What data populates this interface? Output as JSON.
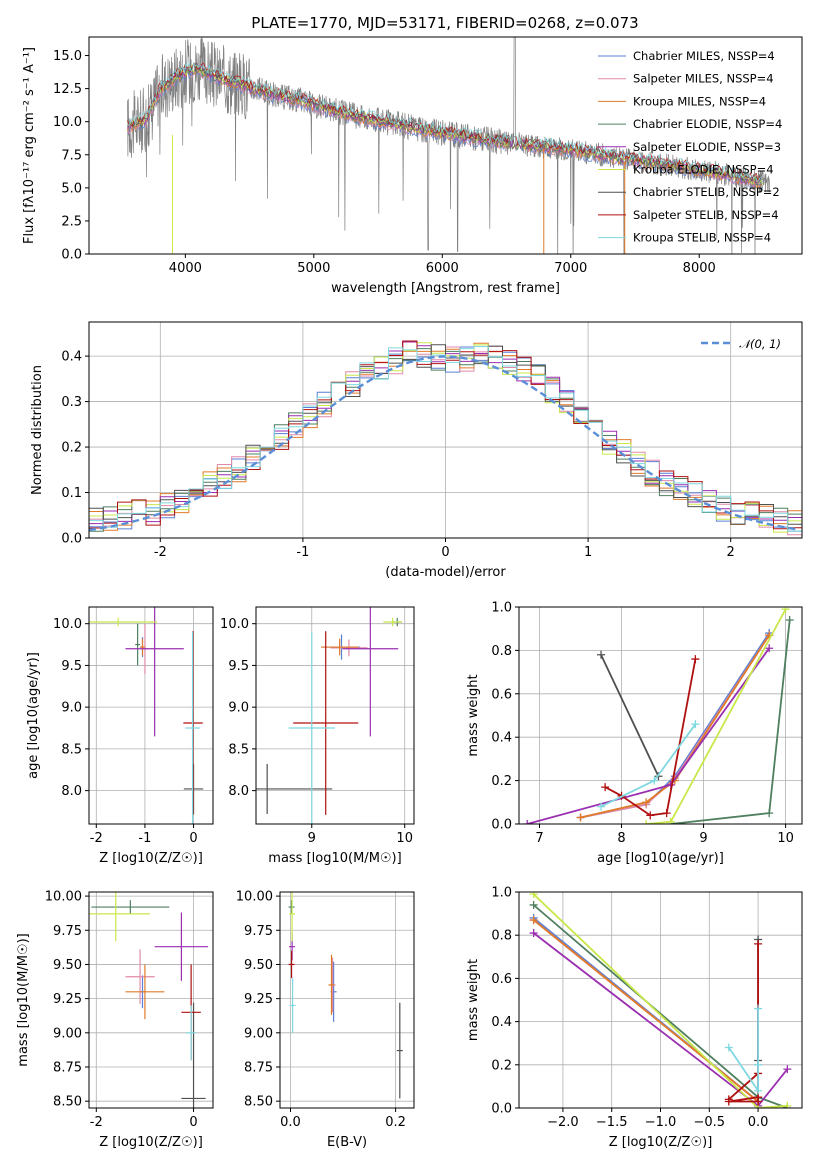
{
  "figure": {
    "title": "PLATE=1770, MJD=53171, FIBERID=0268, z=0.073"
  },
  "colors": {
    "chabrier_miles": "#5a7fd6",
    "salpeter_miles": "#e08aa8",
    "kroupa_miles": "#e07b2a",
    "chabrier_elodie": "#4f7f5f",
    "salpeter_elodie": "#9a2fb0",
    "kroupa_elodie": "#c8e84a",
    "chabrier_stelib": "#505050",
    "salpeter_stelib": "#b01010",
    "kroupa_stelib": "#7fd8e0",
    "data": "#808080",
    "normal": "#5a8fd8"
  },
  "chart_data": [
    {
      "id": "spectrum",
      "type": "line",
      "xlabel": "wavelength [Angstrom, rest frame]",
      "ylabel": "Flux [fλ10⁻¹⁷ erg cm⁻² s⁻¹ A⁻¹]",
      "xlim": [
        3250,
        8800
      ],
      "ylim": [
        0,
        16.4
      ],
      "xticks": [
        4000,
        5000,
        6000,
        7000,
        8000
      ],
      "yticks": [
        "0.0",
        "2.5",
        "5.0",
        "7.5",
        "10.0",
        "12.5",
        "15.0"
      ],
      "grid": false,
      "legend_position": "top-right",
      "legend": [
        "Chabrier MILES, NSSP=4",
        "Salpeter MILES, NSSP=4",
        "Kroupa MILES, NSSP=4",
        "Chabrier ELODIE, NSSP=4",
        "Salpeter ELODIE, NSSP=3",
        "Kroupa ELODIE, NSSP=4",
        "Chabrier STELIB, NSSP=2",
        "Salpeter STELIB, NSSP=4",
        "Kroupa STELIB, NSSP=4"
      ],
      "model_continuum": {
        "x": [
          3550,
          3700,
          3800,
          3900,
          4000,
          4100,
          4300,
          4500,
          4700,
          4900,
          5100,
          5300,
          5500,
          5700,
          5900,
          6100,
          6300,
          6500,
          6700,
          6900,
          7100,
          7300,
          7500,
          7700,
          7900,
          8100,
          8300,
          8500,
          8550
        ],
        "y": [
          9.6,
          10.2,
          12.4,
          13.2,
          13.8,
          14.0,
          13.2,
          12.6,
          12.0,
          11.6,
          11.0,
          10.5,
          10.1,
          9.7,
          9.3,
          9.0,
          8.7,
          8.4,
          8.2,
          8.0,
          7.7,
          7.4,
          7.1,
          6.8,
          6.5,
          6.2,
          5.8,
          5.4,
          5.2
        ]
      },
      "data_range": [
        3550,
        8550
      ]
    },
    {
      "id": "residuals",
      "type": "line",
      "xlabel": "(data-model)/error",
      "ylabel": "Normed distribution",
      "xlim": [
        -2.5,
        2.5
      ],
      "ylim": [
        0,
        0.475
      ],
      "xticks": [
        -2,
        -1,
        0,
        1,
        2
      ],
      "yticks": [
        "0.0",
        "0.1",
        "0.2",
        "0.3",
        "0.4"
      ],
      "grid": true,
      "legend_position": "top-right",
      "legend": [
        "𝒩(0, 1)"
      ],
      "histogram_bin_width": 0.1,
      "histogram_envelope": {
        "x": [
          -2.5,
          -2.0,
          -1.5,
          -1.0,
          -0.5,
          -0.2,
          0.0,
          0.3,
          0.6,
          1.0,
          1.5,
          2.0,
          2.5
        ],
        "y": [
          0.04,
          0.06,
          0.14,
          0.26,
          0.37,
          0.41,
          0.39,
          0.4,
          0.37,
          0.25,
          0.13,
          0.06,
          0.03
        ]
      }
    },
    {
      "id": "age-vs-Z",
      "type": "scatter",
      "xlabel": "Z [log10(Z/Z☉)]",
      "ylabel": "age  [log10(age/yr)]",
      "xlim": [
        -2.15,
        0.4
      ],
      "ylim": [
        7.6,
        10.2
      ],
      "xticks": [
        -2,
        -1,
        0
      ],
      "yticks": [
        "8.0",
        "8.5",
        "9.0",
        "9.5",
        "10.0"
      ],
      "grid": true,
      "points": [
        {
          "model": "chabrier_miles",
          "x": -1.05,
          "xerr": 0.05,
          "y": 9.72,
          "yerr": 0.12
        },
        {
          "model": "salpeter_miles",
          "x": -1.0,
          "xerr": 0.05,
          "y": 9.7,
          "yerr": 0.3
        },
        {
          "model": "kroupa_miles",
          "x": -1.05,
          "xerr": 0.05,
          "y": 9.72,
          "yerr": 0.1
        },
        {
          "model": "chabrier_elodie",
          "x": -1.15,
          "xerr": 0.05,
          "y": 9.75,
          "yerr": 0.25
        },
        {
          "model": "salpeter_elodie",
          "x": -0.8,
          "xerr": 0.6,
          "y": 9.7,
          "yerr": 1.05
        },
        {
          "model": "kroupa_elodie",
          "x": -1.55,
          "xerr": 0.8,
          "y": 10.02,
          "yerr": 0.05
        },
        {
          "model": "chabrier_stelib",
          "x": 0.0,
          "xerr": 0.2,
          "y": 8.02,
          "yerr": 0.3
        },
        {
          "model": "salpeter_stelib",
          "x": -0.01,
          "xerr": 0.2,
          "y": 8.81,
          "yerr": 1.1
        },
        {
          "model": "kroupa_stelib",
          "x": -0.02,
          "xerr": 0.15,
          "y": 8.75,
          "yerr": 1.15
        }
      ]
    },
    {
      "id": "age-vs-mass",
      "type": "scatter",
      "xlabel": "mass [log10(M/M☉)]",
      "ylabel": "",
      "xlim": [
        8.4,
        10.1
      ],
      "ylim": [
        7.6,
        10.2
      ],
      "xticks": [
        9,
        10
      ],
      "yticks": [
        "8.0",
        "8.5",
        "9.0",
        "9.5",
        "10.0"
      ],
      "grid": true,
      "points": [
        {
          "model": "chabrier_miles",
          "x": 9.32,
          "xerr": 0.2,
          "y": 9.72,
          "yerr": 0.15
        },
        {
          "model": "salpeter_miles",
          "x": 9.4,
          "xerr": 0.2,
          "y": 9.71,
          "yerr": 0.1
        },
        {
          "model": "kroupa_miles",
          "x": 9.3,
          "xerr": 0.2,
          "y": 9.72,
          "yerr": 0.1
        },
        {
          "model": "chabrier_elodie",
          "x": 9.92,
          "xerr": 0.05,
          "y": 10.02,
          "yerr": 0.05
        },
        {
          "model": "salpeter_elodie",
          "x": 9.63,
          "xerr": 0.3,
          "y": 9.7,
          "yerr": 1.05
        },
        {
          "model": "kroupa_elodie",
          "x": 9.87,
          "xerr": 0.1,
          "y": 10.02,
          "yerr": 0.05
        },
        {
          "model": "chabrier_stelib",
          "x": 8.52,
          "xerr": 0.7,
          "y": 8.02,
          "yerr": 0.3
        },
        {
          "model": "salpeter_stelib",
          "x": 9.15,
          "xerr": 0.35,
          "y": 8.81,
          "yerr": 1.1
        },
        {
          "model": "kroupa_stelib",
          "x": 9.0,
          "xerr": 0.25,
          "y": 8.75,
          "yerr": 1.15
        }
      ]
    },
    {
      "id": "weight-vs-age",
      "type": "line",
      "xlabel": "age  [log10(age/yr)]",
      "ylabel": "mass weight",
      "xlim": [
        6.75,
        10.2
      ],
      "ylim": [
        0,
        1.0
      ],
      "xticks": [
        7,
        8,
        9,
        10
      ],
      "yticks": [
        "0.0",
        "0.2",
        "0.4",
        "0.6",
        "0.8",
        "1.0"
      ],
      "grid": true,
      "series": [
        {
          "model": "chabrier_miles",
          "x": [
            7.5,
            8.3,
            8.65,
            9.8
          ],
          "y": [
            0.03,
            0.09,
            0.22,
            0.88
          ]
        },
        {
          "model": "salpeter_miles",
          "x": [
            7.5,
            8.3,
            8.65,
            9.8
          ],
          "y": [
            0.03,
            0.09,
            0.21,
            0.87
          ]
        },
        {
          "model": "kroupa_miles",
          "x": [
            7.5,
            8.3,
            8.65,
            9.8
          ],
          "y": [
            0.03,
            0.1,
            0.2,
            0.87
          ]
        },
        {
          "model": "chabrier_elodie",
          "x": [
            8.6,
            9.8,
            10.05
          ],
          "y": [
            0.0,
            0.05,
            0.94
          ]
        },
        {
          "model": "salpeter_elodie",
          "x": [
            6.85,
            8.6,
            9.8
          ],
          "y": [
            0.0,
            0.18,
            0.81
          ]
        },
        {
          "model": "kroupa_elodie",
          "x": [
            8.3,
            8.6,
            10.0
          ],
          "y": [
            0.0,
            0.01,
            0.99
          ]
        },
        {
          "model": "chabrier_stelib",
          "x": [
            7.75,
            8.45
          ],
          "y": [
            0.78,
            0.22
          ]
        },
        {
          "model": "salpeter_stelib",
          "x": [
            7.8,
            8.0,
            8.35,
            8.55,
            8.9
          ],
          "y": [
            0.17,
            0.13,
            0.04,
            0.05,
            0.76
          ]
        },
        {
          "model": "kroupa_stelib",
          "x": [
            7.75,
            8.4,
            8.9
          ],
          "y": [
            0.08,
            0.2,
            0.46
          ]
        }
      ]
    },
    {
      "id": "mass-vs-Z",
      "type": "scatter",
      "xlabel": "Z [log10(Z/Z☉)]",
      "ylabel": "mass [log10(M/M☉)]",
      "xlim": [
        -2.15,
        0.4
      ],
      "ylim": [
        8.45,
        10.03
      ],
      "xticks": [
        -2,
        0
      ],
      "yticks": [
        "8.50",
        "8.75",
        "9.00",
        "9.25",
        "9.50",
        "9.75",
        "10.00"
      ],
      "grid": true,
      "points": [
        {
          "model": "chabrier_miles",
          "x": -1.05,
          "xerr": 0.05,
          "y": 9.3,
          "yerr": 0.12
        },
        {
          "model": "salpeter_miles",
          "x": -1.1,
          "xerr": 0.3,
          "y": 9.41,
          "yerr": 0.2
        },
        {
          "model": "kroupa_miles",
          "x": -1.0,
          "xerr": 0.4,
          "y": 9.3,
          "yerr": 0.2
        },
        {
          "model": "chabrier_elodie",
          "x": -1.3,
          "xerr": 0.8,
          "y": 9.92,
          "yerr": 0.05
        },
        {
          "model": "salpeter_elodie",
          "x": -0.25,
          "xerr": 0.55,
          "y": 9.63,
          "yerr": 0.25
        },
        {
          "model": "kroupa_elodie",
          "x": -1.6,
          "xerr": 0.7,
          "y": 9.87,
          "yerr": 0.2
        },
        {
          "model": "chabrier_stelib",
          "x": 0.0,
          "xerr": 0.25,
          "y": 8.52,
          "yerr": 0.7
        },
        {
          "model": "salpeter_stelib",
          "x": -0.05,
          "xerr": 0.2,
          "y": 9.15,
          "yerr": 0.35
        },
        {
          "model": "kroupa_stelib",
          "x": -0.05,
          "xerr": 0.1,
          "y": 9.0,
          "yerr": 0.2
        }
      ]
    },
    {
      "id": "mass-vs-ebv",
      "type": "scatter",
      "xlabel": "E(B-V)",
      "ylabel": "",
      "xlim": [
        -0.02,
        0.235
      ],
      "ylim": [
        8.45,
        10.03
      ],
      "xticks": [
        "0.0",
        "0.2"
      ],
      "yticks": [
        "8.50",
        "8.75",
        "9.00",
        "9.25",
        "9.50",
        "9.75",
        "10.00"
      ],
      "grid": true,
      "points": [
        {
          "model": "chabrier_miles",
          "x": 0.082,
          "y": 9.3,
          "yerr": 0.22
        },
        {
          "model": "salpeter_miles",
          "x": 0.08,
          "y": 9.35,
          "yerr": 0.2
        },
        {
          "model": "kroupa_miles",
          "x": 0.078,
          "y": 9.35,
          "yerr": 0.22
        },
        {
          "model": "chabrier_elodie",
          "x": 0.002,
          "y": 9.92,
          "yerr": 0.05
        },
        {
          "model": "salpeter_elodie",
          "x": 0.003,
          "y": 9.63,
          "yerr": 0.1
        },
        {
          "model": "kroupa_elodie",
          "x": 0.003,
          "y": 9.87,
          "yerr": 0.2
        },
        {
          "model": "chabrier_stelib",
          "x": 0.208,
          "y": 8.87,
          "yerr": 0.35
        },
        {
          "model": "salpeter_stelib",
          "x": 0.002,
          "y": 9.5,
          "yerr": 0.1
        },
        {
          "model": "kroupa_stelib",
          "x": 0.004,
          "y": 9.2,
          "yerr": 0.2
        }
      ]
    },
    {
      "id": "weight-vs-Z",
      "type": "line",
      "xlabel": "Z [log10(Z/Z☉)]",
      "ylabel": "mass weight",
      "xlim": [
        -2.45,
        0.45
      ],
      "ylim": [
        0,
        1.0
      ],
      "xticks": [
        "−2.0",
        "−1.5",
        "−1.0",
        "−0.5",
        "0.0"
      ],
      "xtick_values": [
        -2.0,
        -1.5,
        -1.0,
        -0.5,
        0.0
      ],
      "yticks": [
        "0.0",
        "0.2",
        "0.4",
        "0.6",
        "0.8",
        "1.0"
      ],
      "grid": true,
      "series": [
        {
          "model": "chabrier_miles",
          "x": [
            -2.3,
            0.0
          ],
          "y": [
            0.88,
            0.03
          ]
        },
        {
          "model": "salpeter_miles",
          "x": [
            -2.3,
            0.0
          ],
          "y": [
            0.87,
            0.03
          ]
        },
        {
          "model": "kroupa_miles",
          "x": [
            -2.3,
            0.0
          ],
          "y": [
            0.87,
            0.03
          ]
        },
        {
          "model": "chabrier_elodie",
          "x": [
            -2.3,
            0.0,
            0.3
          ],
          "y": [
            0.94,
            0.05,
            0.0
          ]
        },
        {
          "model": "salpeter_elodie",
          "x": [
            -2.3,
            0.0,
            0.3
          ],
          "y": [
            0.81,
            0.01,
            0.18
          ]
        },
        {
          "model": "kroupa_elodie",
          "x": [
            -2.3,
            0.0,
            0.3
          ],
          "y": [
            0.99,
            0.0,
            0.01
          ]
        },
        {
          "model": "chabrier_stelib",
          "x": [
            0.0,
            0.0
          ],
          "y": [
            0.78,
            0.22
          ]
        },
        {
          "model": "salpeter_stelib",
          "x": [
            -0.3,
            0.0,
            0.0,
            -0.3,
            0.0,
            0.0
          ],
          "y": [
            0.04,
            0.16,
            0.05,
            0.03,
            0.03,
            0.76
          ]
        },
        {
          "model": "kroupa_stelib",
          "x": [
            -0.3,
            0.0,
            0.0,
            0.0
          ],
          "y": [
            0.28,
            0.08,
            0.46,
            0.2
          ]
        }
      ]
    }
  ]
}
